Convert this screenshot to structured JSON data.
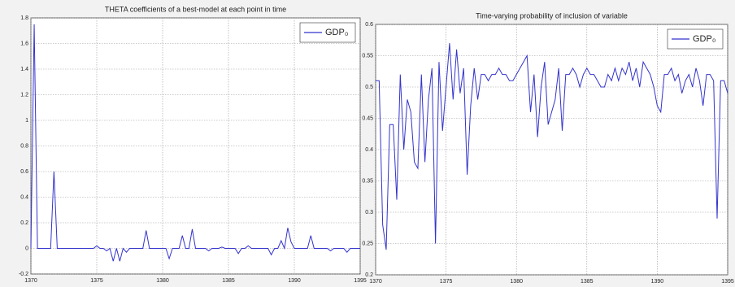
{
  "chart_data": [
    {
      "type": "line",
      "title": "THETA coefficients of a best-model at each point in time",
      "x": [
        1370,
        1370.25,
        1370.5,
        1370.75,
        1371,
        1371.25,
        1371.5,
        1371.75,
        1372,
        1372.25,
        1372.5,
        1372.75,
        1373,
        1373.25,
        1373.5,
        1373.75,
        1374,
        1374.25,
        1374.5,
        1374.75,
        1375,
        1375.25,
        1375.5,
        1375.75,
        1376,
        1376.25,
        1376.5,
        1376.75,
        1377,
        1377.25,
        1377.5,
        1377.75,
        1378,
        1378.25,
        1378.5,
        1378.75,
        1379,
        1379.25,
        1379.5,
        1379.75,
        1380,
        1380.25,
        1380.5,
        1380.75,
        1381,
        1381.25,
        1381.5,
        1381.75,
        1382,
        1382.25,
        1382.5,
        1382.75,
        1383,
        1383.25,
        1383.5,
        1383.75,
        1384,
        1384.25,
        1384.5,
        1384.75,
        1385,
        1385.25,
        1385.5,
        1385.75,
        1386,
        1386.25,
        1386.5,
        1386.75,
        1387,
        1387.25,
        1387.5,
        1387.75,
        1388,
        1388.25,
        1388.5,
        1388.75,
        1389,
        1389.25,
        1389.5,
        1389.75,
        1390,
        1390.25,
        1390.5,
        1390.75,
        1391,
        1391.25,
        1391.5,
        1391.75,
        1392,
        1392.25,
        1392.5,
        1392.75,
        1393,
        1393.25,
        1393.5,
        1393.75,
        1394,
        1394.25,
        1394.5,
        1394.75,
        1395
      ],
      "series": [
        {
          "name": "GDP₀",
          "color": "#3333cc",
          "values": [
            0,
            1.75,
            0,
            0,
            0,
            0,
            0,
            0.6,
            0,
            0,
            0,
            0,
            0,
            0,
            0,
            0,
            0,
            0,
            0,
            0,
            0.02,
            0,
            0,
            -0.02,
            0,
            -0.1,
            0,
            -0.1,
            0,
            -0.03,
            0,
            0,
            0,
            0,
            0,
            0.14,
            0,
            0,
            0,
            0,
            0,
            0,
            -0.08,
            0,
            0,
            0,
            0.1,
            0,
            0,
            0.15,
            0,
            0,
            0,
            0,
            -0.02,
            0,
            0,
            0,
            0.01,
            0,
            0,
            0,
            0,
            -0.04,
            0,
            0,
            0.02,
            0,
            0,
            0,
            0,
            0,
            0,
            -0.05,
            0,
            0,
            0.06,
            0,
            0.16,
            0.05,
            0,
            0,
            0,
            0,
            0,
            0.1,
            0,
            0,
            0,
            0,
            0,
            -0.02,
            0,
            0,
            0,
            0,
            -0.03,
            0,
            0,
            0,
            0
          ]
        }
      ],
      "xlim": [
        1370,
        1395
      ],
      "xticks": [
        1370,
        1375,
        1380,
        1385,
        1390,
        1395
      ],
      "ylim": [
        -0.2,
        1.8
      ],
      "yticks": [
        -0.2,
        0,
        0.2,
        0.4,
        0.6,
        0.8,
        1,
        1.2,
        1.4,
        1.6,
        1.8
      ],
      "grid": true,
      "legend": "top-right"
    },
    {
      "type": "line",
      "title": "Time-varying probability of inclusion of variable",
      "x": [
        1370,
        1370.25,
        1370.5,
        1370.75,
        1371,
        1371.25,
        1371.5,
        1371.75,
        1372,
        1372.25,
        1372.5,
        1372.75,
        1373,
        1373.25,
        1373.5,
        1373.75,
        1374,
        1374.25,
        1374.5,
        1374.75,
        1375,
        1375.25,
        1375.5,
        1375.75,
        1376,
        1376.25,
        1376.5,
        1376.75,
        1377,
        1377.25,
        1377.5,
        1377.75,
        1378,
        1378.25,
        1378.5,
        1378.75,
        1379,
        1379.25,
        1379.5,
        1379.75,
        1380,
        1380.25,
        1380.5,
        1380.75,
        1381,
        1381.25,
        1381.5,
        1381.75,
        1382,
        1382.25,
        1382.5,
        1382.75,
        1383,
        1383.25,
        1383.5,
        1383.75,
        1384,
        1384.25,
        1384.5,
        1384.75,
        1385,
        1385.25,
        1385.5,
        1385.75,
        1386,
        1386.25,
        1386.5,
        1386.75,
        1387,
        1387.25,
        1387.5,
        1387.75,
        1388,
        1388.25,
        1388.5,
        1388.75,
        1389,
        1389.25,
        1389.5,
        1389.75,
        1390,
        1390.25,
        1390.5,
        1390.75,
        1391,
        1391.25,
        1391.5,
        1391.75,
        1392,
        1392.25,
        1392.5,
        1392.75,
        1393,
        1393.25,
        1393.5,
        1393.75,
        1394,
        1394.25,
        1394.5,
        1394.75,
        1395
      ],
      "series": [
        {
          "name": "GDP₀",
          "color": "#3333cc",
          "values": [
            0.51,
            0.51,
            0.28,
            0.24,
            0.44,
            0.44,
            0.32,
            0.52,
            0.4,
            0.48,
            0.46,
            0.38,
            0.37,
            0.52,
            0.38,
            0.48,
            0.53,
            0.25,
            0.54,
            0.43,
            0.5,
            0.57,
            0.48,
            0.56,
            0.49,
            0.53,
            0.36,
            0.47,
            0.53,
            0.48,
            0.52,
            0.52,
            0.51,
            0.52,
            0.52,
            0.53,
            0.52,
            0.52,
            0.51,
            0.51,
            0.52,
            0.53,
            0.54,
            0.55,
            0.46,
            0.52,
            0.42,
            0.5,
            0.54,
            0.44,
            0.46,
            0.48,
            0.53,
            0.43,
            0.52,
            0.52,
            0.53,
            0.52,
            0.5,
            0.52,
            0.53,
            0.52,
            0.52,
            0.51,
            0.5,
            0.5,
            0.52,
            0.51,
            0.53,
            0.51,
            0.53,
            0.52,
            0.54,
            0.51,
            0.53,
            0.5,
            0.54,
            0.53,
            0.52,
            0.5,
            0.47,
            0.46,
            0.52,
            0.52,
            0.53,
            0.51,
            0.52,
            0.49,
            0.51,
            0.52,
            0.5,
            0.53,
            0.51,
            0.47,
            0.52,
            0.52,
            0.51,
            0.29,
            0.51,
            0.51,
            0.49
          ]
        }
      ],
      "xlim": [
        1370,
        1395
      ],
      "xticks": [
        1370,
        1375,
        1380,
        1385,
        1390,
        1395
      ],
      "ylim": [
        0.2,
        0.6
      ],
      "yticks": [
        0.2,
        0.25,
        0.3,
        0.35,
        0.4,
        0.45,
        0.5,
        0.55,
        0.6
      ],
      "grid": true,
      "legend": "top-right"
    }
  ]
}
